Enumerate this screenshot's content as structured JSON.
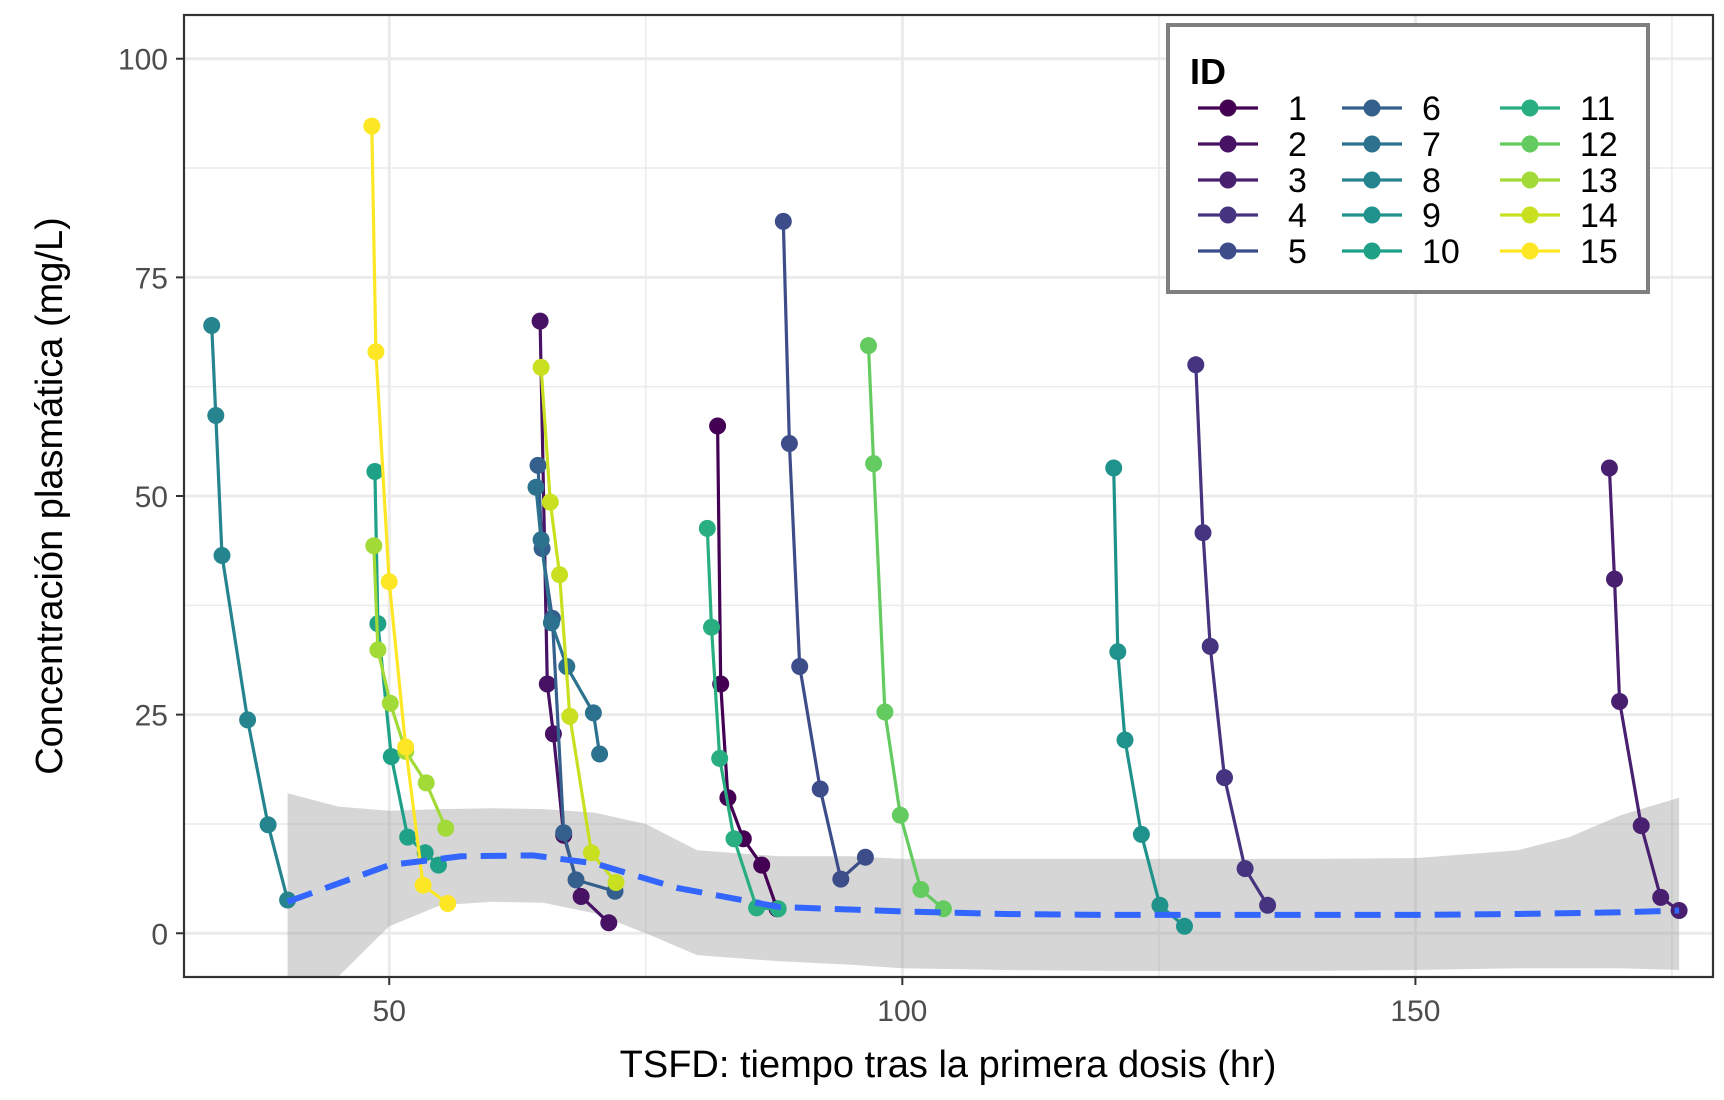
{
  "chart_data": {
    "type": "line",
    "title": "",
    "xlabel": "TSFD: tiempo tras la primera dosis (hr)",
    "ylabel": "Concentración plasmática (mg/L)",
    "xlim": [
      30,
      179
    ],
    "ylim": [
      -5,
      105
    ],
    "x_ticks": [
      50,
      100,
      150
    ],
    "y_ticks": [
      0,
      25,
      50,
      75,
      100
    ],
    "grid": true,
    "legend": {
      "title": "ID",
      "position": "top-right",
      "columns": 3
    },
    "series": [
      {
        "name": "1",
        "color": "#440154",
        "x": [
          82.0,
          82.3,
          83.0,
          84.5,
          86.3,
          87.8
        ],
        "y": [
          58.0,
          28.5,
          15.5,
          10.8,
          7.8,
          2.8
        ]
      },
      {
        "name": "2",
        "color": "#471164",
        "x": [
          64.7,
          65.4,
          66.0,
          67.0,
          68.7,
          71.4
        ],
        "y": [
          70.0,
          28.5,
          22.8,
          11.2,
          4.2,
          1.2
        ]
      },
      {
        "name": "3",
        "color": "#48206f",
        "x": [
          168.9,
          169.4,
          169.9,
          172.0,
          173.9,
          175.7
        ],
        "y": [
          53.2,
          40.5,
          26.5,
          12.3,
          4.1,
          2.6
        ]
      },
      {
        "name": "4",
        "color": "#463480",
        "x": [
          128.6,
          129.3,
          130.0,
          131.4,
          133.4,
          135.6
        ],
        "y": [
          65.0,
          45.8,
          32.8,
          17.8,
          7.4,
          3.2
        ]
      },
      {
        "name": "5",
        "color": "#3d4d8a",
        "x": [
          88.4,
          89.0,
          90.0,
          92.0,
          94.0,
          96.4
        ],
        "y": [
          81.4,
          56.0,
          30.5,
          16.5,
          6.2,
          8.7
        ]
      },
      {
        "name": "6",
        "color": "#355f8d",
        "x": [
          64.5,
          64.9,
          65.9,
          67.0,
          68.2,
          72.0
        ],
        "y": [
          53.5,
          44.0,
          36.0,
          11.5,
          6.1,
          4.8
        ]
      },
      {
        "name": "7",
        "color": "#2c728e",
        "x": [
          64.3,
          64.8,
          65.8,
          67.3,
          69.9,
          70.5
        ],
        "y": [
          51.0,
          45.0,
          35.5,
          30.5,
          25.2,
          20.5
        ]
      },
      {
        "name": "8",
        "color": "#25848e",
        "x": [
          32.7,
          33.1,
          33.7,
          36.2,
          38.2,
          40.1
        ],
        "y": [
          69.5,
          59.2,
          43.2,
          24.4,
          12.4,
          3.8
        ]
      },
      {
        "name": "9",
        "color": "#20928c",
        "x": [
          120.6,
          121.0,
          121.7,
          123.3,
          125.1,
          127.5
        ],
        "y": [
          53.2,
          32.2,
          22.1,
          11.3,
          3.2,
          0.8
        ]
      },
      {
        "name": "10",
        "color": "#1fa188",
        "x": [
          48.6,
          48.9,
          50.2,
          51.8,
          53.5,
          54.8
        ],
        "y": [
          52.8,
          35.4,
          20.2,
          11.0,
          9.2,
          7.8
        ]
      },
      {
        "name": "11",
        "color": "#28ae80",
        "x": [
          81.0,
          81.4,
          82.2,
          83.6,
          85.8,
          87.9
        ],
        "y": [
          46.3,
          35.0,
          20.0,
          10.8,
          2.9,
          2.8
        ]
      },
      {
        "name": "12",
        "color": "#63cb5f",
        "x": [
          96.7,
          97.2,
          98.3,
          99.8,
          101.8,
          104.0
        ],
        "y": [
          67.2,
          53.7,
          25.3,
          13.5,
          5.0,
          2.8
        ]
      },
      {
        "name": "13",
        "color": "#a2da37",
        "x": [
          48.5,
          48.9,
          50.1,
          51.6,
          53.6,
          55.5
        ],
        "y": [
          44.3,
          32.4,
          26.3,
          20.8,
          17.2,
          12.0
        ]
      },
      {
        "name": "14",
        "color": "#c8e020",
        "x": [
          64.8,
          65.7,
          66.6,
          67.6,
          69.7,
          72.1
        ],
        "y": [
          64.7,
          49.3,
          41.0,
          24.8,
          9.2,
          5.8
        ]
      },
      {
        "name": "15",
        "color": "#fde725",
        "x": [
          48.3,
          48.7,
          50.0,
          51.6,
          53.3,
          55.7
        ],
        "y": [
          92.3,
          66.5,
          40.2,
          21.3,
          5.5,
          3.4
        ]
      }
    ],
    "smooth": {
      "color": "#3366ff",
      "x": [
        40.1,
        50,
        57,
        64,
        70,
        78,
        88,
        100,
        110,
        120,
        130,
        140,
        150,
        160,
        170,
        175.7
      ],
      "y": [
        3.6,
        7.8,
        8.8,
        8.9,
        8.0,
        5.2,
        3.0,
        2.5,
        2.2,
        2.1,
        2.1,
        2.1,
        2.1,
        2.2,
        2.4,
        2.6
      ]
    },
    "ribbon": {
      "color": "#999999",
      "x": [
        40.1,
        45,
        50,
        55,
        60,
        65,
        70,
        75,
        80,
        88,
        95,
        100,
        110,
        120,
        130,
        140,
        150,
        160,
        165,
        170,
        175.7
      ],
      "upper": [
        16.0,
        14.5,
        14.0,
        14.2,
        14.3,
        14.2,
        13.8,
        12.5,
        9.5,
        8.8,
        8.8,
        8.5,
        8.5,
        8.5,
        8.5,
        8.5,
        8.6,
        9.5,
        11.0,
        13.5,
        15.5
      ],
      "lower": [
        -11.0,
        -5.0,
        0.8,
        3.2,
        3.6,
        3.5,
        2.3,
        0.0,
        -2.5,
        -3.2,
        -3.6,
        -4.0,
        -4.2,
        -4.3,
        -4.3,
        -4.3,
        -4.2,
        -4.0,
        -4.0,
        -4.0,
        -4.2
      ]
    }
  }
}
